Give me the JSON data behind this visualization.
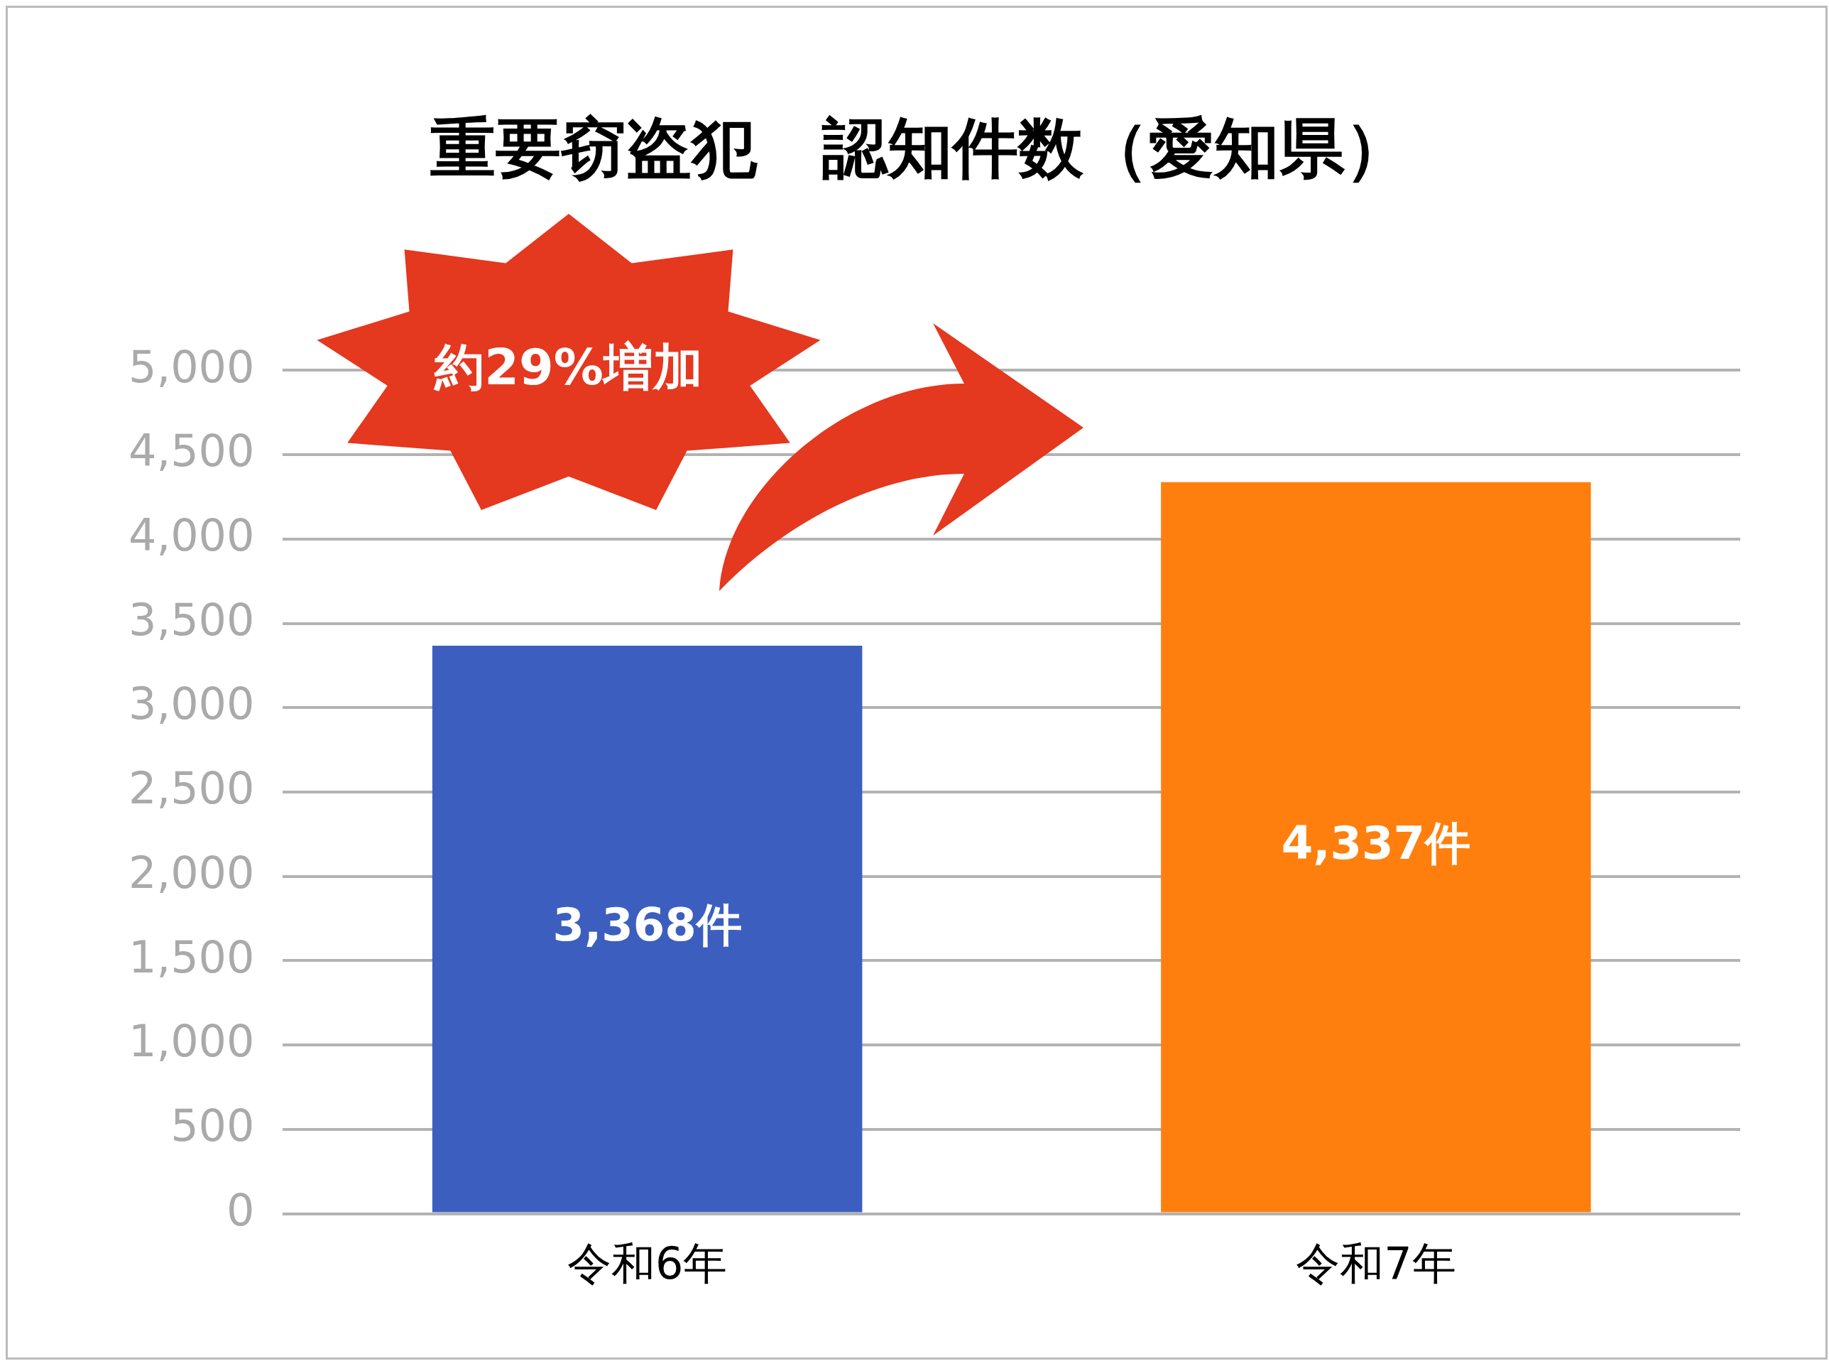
{
  "chart_data": {
    "type": "bar",
    "title": "重要窃盗犯　認知件数（愛知県）",
    "categories": [
      "令和6年",
      "令和7年"
    ],
    "values": [
      3368,
      4337
    ],
    "colors": [
      "#3c5fbf",
      "#ff7f0e"
    ],
    "value_labels": [
      "3,368件",
      "4,337件"
    ],
    "ylim": [
      0,
      5000
    ],
    "yticks": [
      0,
      500,
      {
        "value": 1000,
        "label": "1,000"
      },
      {
        "value": 1500,
        "label": "1,500"
      },
      {
        "value": 2000,
        "label": "2,000"
      },
      {
        "value": 2500,
        "label": "2,500"
      },
      {
        "value": 3000,
        "label": "3,000"
      },
      {
        "value": 3500,
        "label": "3,500"
      },
      {
        "value": 4000,
        "label": "4,000"
      },
      {
        "value": 4500,
        "label": "4,500"
      },
      {
        "value": 5000,
        "label": "5,000"
      }
    ],
    "grid": "y",
    "legend": false,
    "annotations": [
      "約29%増加"
    ]
  }
}
